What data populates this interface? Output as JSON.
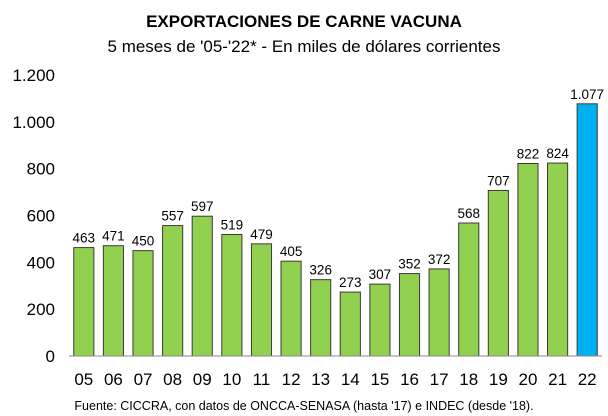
{
  "chart_data": {
    "type": "bar",
    "title": "EXPORTACIONES DE CARNE VACUNA",
    "subtitle": "5 meses de '05-'22* - En miles de dólares corrientes",
    "categories": [
      "05",
      "06",
      "07",
      "08",
      "09",
      "10",
      "11",
      "12",
      "13",
      "14",
      "15",
      "16",
      "17",
      "18",
      "19",
      "20",
      "21",
      "22"
    ],
    "values": [
      463,
      471,
      450,
      557,
      597,
      519,
      479,
      405,
      326,
      273,
      307,
      352,
      372,
      568,
      707,
      822,
      824,
      1077
    ],
    "value_labels": [
      "463",
      "471",
      "450",
      "557",
      "597",
      "519",
      "479",
      "405",
      "326",
      "273",
      "307",
      "352",
      "372",
      "568",
      "707",
      "822",
      "824",
      "1.077"
    ],
    "ylim": [
      0,
      1200
    ],
    "yticks": [
      0,
      200,
      400,
      600,
      800,
      1000,
      1200
    ],
    "ytick_labels": [
      "0",
      "200",
      "400",
      "600",
      "800",
      "1.000",
      "1.200"
    ],
    "xlabel": "",
    "ylabel": "",
    "grid": false,
    "colors": {
      "default": "#92d050",
      "highlight": "#00b0f0",
      "outline": "#3a3a3a"
    },
    "highlight_index": 17,
    "source": "Fuente: CICCRA, con datos de ONCCA-SENASA (hasta '17) e INDEC (desde '18)."
  }
}
